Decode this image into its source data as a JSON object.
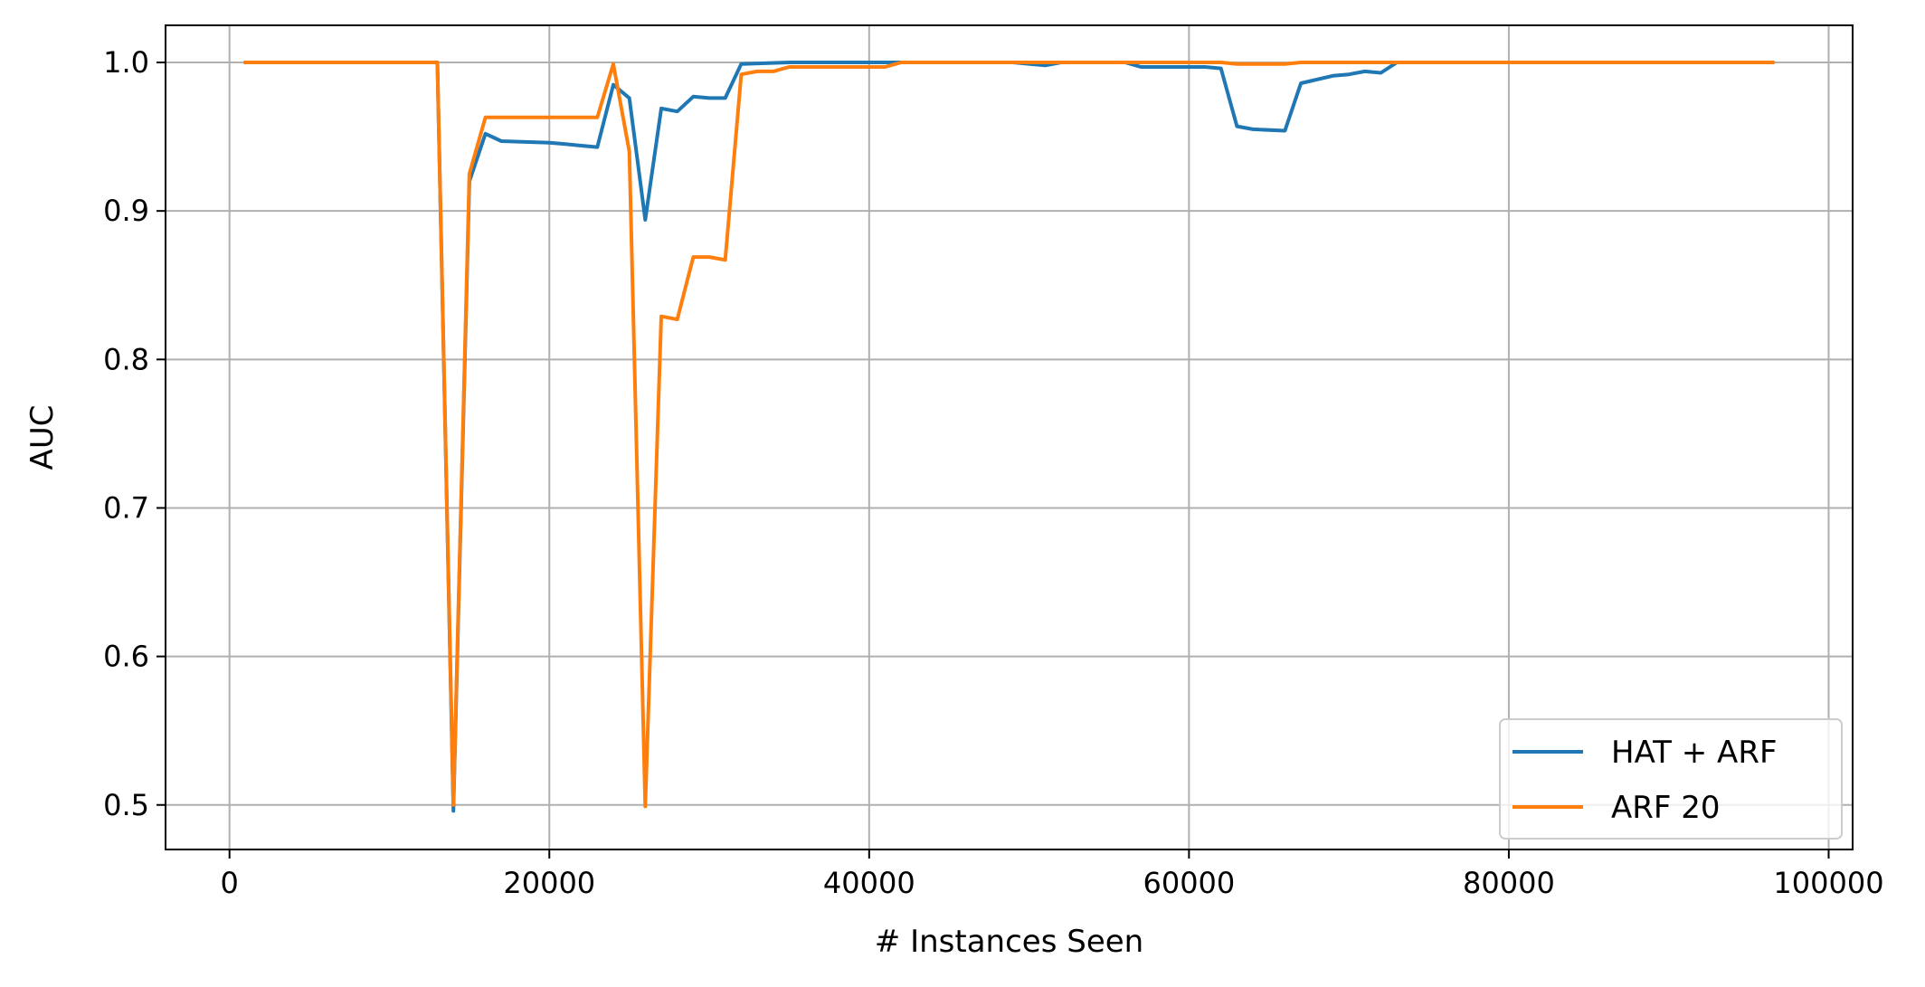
{
  "chart_data": {
    "type": "line",
    "title": "",
    "xlabel": "# Instances Seen",
    "ylabel": "AUC",
    "xlim": [
      -4000,
      101500
    ],
    "ylim": [
      0.47,
      1.025
    ],
    "xticks": [
      0,
      20000,
      40000,
      60000,
      80000,
      100000
    ],
    "yticks": [
      0.5,
      0.6,
      0.7,
      0.8,
      0.9,
      1.0
    ],
    "xtick_labels": [
      "0",
      "20000",
      "40000",
      "60000",
      "80000",
      "100000"
    ],
    "ytick_labels": [
      "0.5",
      "0.6",
      "0.7",
      "0.8",
      "0.9",
      "1.0"
    ],
    "grid": true,
    "legend_position": "bottom-right",
    "series": [
      {
        "name": "HAT + ARF",
        "color": "#1f77b4",
        "points": [
          [
            1000,
            1.0
          ],
          [
            13000,
            1.0
          ],
          [
            14000,
            0.496
          ],
          [
            15000,
            0.92
          ],
          [
            16000,
            0.952
          ],
          [
            17000,
            0.947
          ],
          [
            20000,
            0.946
          ],
          [
            21000,
            0.945
          ],
          [
            22000,
            0.944
          ],
          [
            23000,
            0.943
          ],
          [
            24000,
            0.985
          ],
          [
            25000,
            0.976
          ],
          [
            26000,
            0.894
          ],
          [
            27000,
            0.969
          ],
          [
            28000,
            0.967
          ],
          [
            29000,
            0.977
          ],
          [
            30000,
            0.976
          ],
          [
            31000,
            0.976
          ],
          [
            32000,
            0.999
          ],
          [
            35000,
            1.0
          ],
          [
            42000,
            1.0
          ],
          [
            49000,
            1.0
          ],
          [
            51000,
            0.998
          ],
          [
            52000,
            1.0
          ],
          [
            56000,
            1.0
          ],
          [
            57000,
            0.997
          ],
          [
            61000,
            0.997
          ],
          [
            62000,
            0.996
          ],
          [
            63000,
            0.957
          ],
          [
            64000,
            0.955
          ],
          [
            66000,
            0.954
          ],
          [
            67000,
            0.986
          ],
          [
            69000,
            0.991
          ],
          [
            70000,
            0.992
          ],
          [
            71000,
            0.994
          ],
          [
            72000,
            0.993
          ],
          [
            73000,
            1.0
          ],
          [
            96500,
            1.0
          ]
        ]
      },
      {
        "name": "ARF 20",
        "color": "#ff7f0e",
        "points": [
          [
            1000,
            1.0
          ],
          [
            13000,
            1.0
          ],
          [
            14000,
            0.5
          ],
          [
            15000,
            0.925
          ],
          [
            16000,
            0.963
          ],
          [
            23000,
            0.963
          ],
          [
            24000,
            0.999
          ],
          [
            25000,
            0.94
          ],
          [
            26000,
            0.499
          ],
          [
            27000,
            0.829
          ],
          [
            28000,
            0.827
          ],
          [
            29000,
            0.869
          ],
          [
            30000,
            0.869
          ],
          [
            31000,
            0.867
          ],
          [
            32000,
            0.992
          ],
          [
            33000,
            0.994
          ],
          [
            34000,
            0.994
          ],
          [
            35000,
            0.997
          ],
          [
            41000,
            0.997
          ],
          [
            42000,
            1.0
          ],
          [
            62000,
            1.0
          ],
          [
            63000,
            0.999
          ],
          [
            66000,
            0.999
          ],
          [
            67000,
            1.0
          ],
          [
            96500,
            1.0
          ]
        ]
      }
    ]
  }
}
